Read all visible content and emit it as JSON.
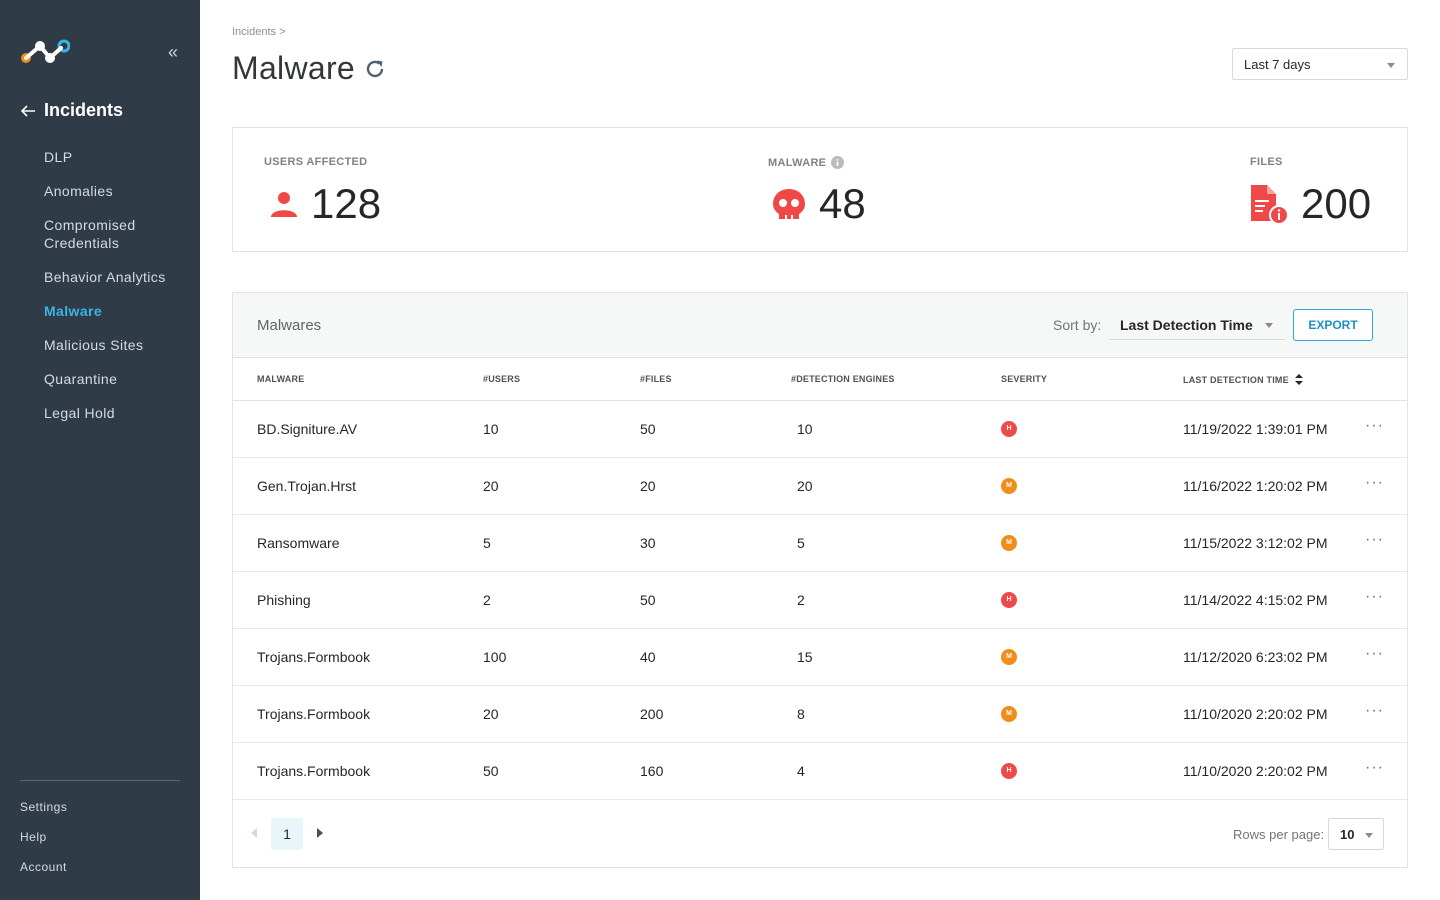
{
  "sidebar": {
    "section_title": "Incidents",
    "items": [
      {
        "label": "DLP"
      },
      {
        "label": "Anomalies"
      },
      {
        "label": "Compromised Credentials"
      },
      {
        "label": "Behavior Analytics"
      },
      {
        "label": "Malware",
        "active": true
      },
      {
        "label": "Malicious Sites"
      },
      {
        "label": "Quarantine"
      },
      {
        "label": "Legal Hold"
      }
    ],
    "bottom": [
      {
        "label": "Settings"
      },
      {
        "label": "Help"
      },
      {
        "label": "Account"
      }
    ]
  },
  "header": {
    "breadcrumb": "Incidents >",
    "title": "Malware",
    "time_range": "Last 7 days"
  },
  "stats": {
    "users_label": "USERS AFFECTED",
    "users_value": "128",
    "malware_label": "MALWARE",
    "malware_value": "48",
    "files_label": "FILES",
    "files_value": "200"
  },
  "table": {
    "title": "Malwares",
    "sort_label": "Sort by:",
    "sort_value": "Last Detection Time",
    "export_label": "EXPORT",
    "columns": [
      "MALWARE",
      "#USERS",
      "#FILES",
      "#DETECTION ENGINES",
      "SEVERITY",
      "LAST DETECTION TIME"
    ],
    "rows": [
      {
        "name": "BD.Signiture.AV",
        "users": "10",
        "files": "50",
        "engines": "10",
        "severity": "H",
        "time": "11/19/2022 1:39:01 PM"
      },
      {
        "name": "Gen.Trojan.Hrst",
        "users": "20",
        "files": "20",
        "engines": "20",
        "severity": "M",
        "time": "11/16/2022 1:20:02 PM"
      },
      {
        "name": "Ransomware",
        "users": "5",
        "files": "30",
        "engines": "5",
        "severity": "M",
        "time": "11/15/2022 3:12:02 PM"
      },
      {
        "name": "Phishing",
        "users": "2",
        "files": "50",
        "engines": "2",
        "severity": "H",
        "time": "11/14/2022 4:15:02 PM"
      },
      {
        "name": "Trojans.Formbook",
        "users": "100",
        "files": "40",
        "engines": "15",
        "severity": "M",
        "time": "11/12/2020 6:23:02 PM"
      },
      {
        "name": "Trojans.Formbook",
        "users": "20",
        "files": "200",
        "engines": "8",
        "severity": "M",
        "time": "11/10/2020 2:20:02 PM"
      },
      {
        "name": "Trojans.Formbook",
        "users": "50",
        "files": "160",
        "engines": "4",
        "severity": "H",
        "time": "11/10/2020 2:20:02 PM"
      }
    ],
    "more_label": "···"
  },
  "pagination": {
    "current_page": "1",
    "rows_per_page_label": "Rows per page:",
    "rows_per_page": "10"
  },
  "colors": {
    "sidebar_bg": "#2f3c47",
    "accent": "#3bb3e6",
    "severity_high": "#ef4a4a",
    "severity_medium": "#f28c1a",
    "stat_icon": "#f04848"
  }
}
